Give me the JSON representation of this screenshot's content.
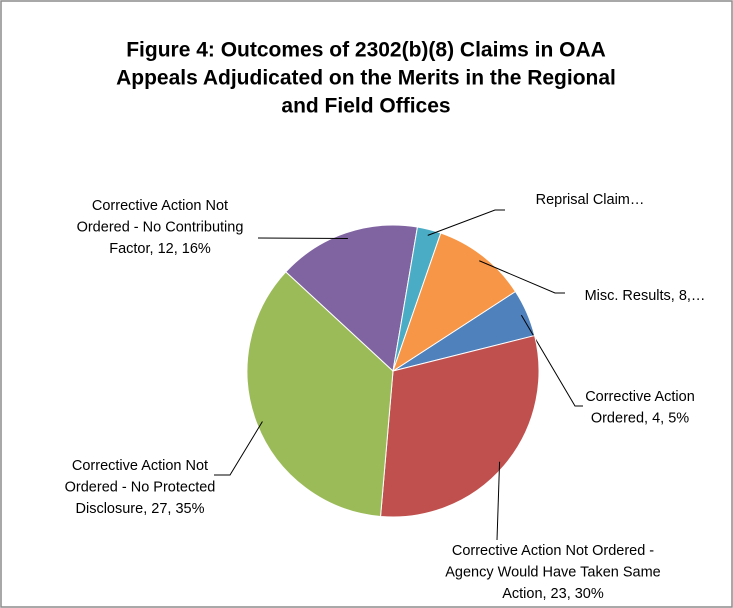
{
  "chart_data": {
    "type": "pie",
    "title": [
      "Figure 4: Outcomes of 2302(b)(8) Claims in OAA",
      "Appeals Adjudicated on the Merits in the Regional",
      "and Field Offices"
    ],
    "values": [
      4,
      23,
      27,
      12,
      2,
      8
    ],
    "value_labels": [
      [
        "Corrective Action",
        "Ordered, 4, 5%"
      ],
      [
        "Corrective Action Not Ordered -",
        "Agency Would Have Taken Same",
        "Action, 23, 30%"
      ],
      [
        "Corrective Action Not",
        "Ordered - No Protected",
        "Disclosure, 27, 35%"
      ],
      [
        "Corrective Action Not",
        "Ordered - No Contributing",
        "Factor, 12, 16%"
      ],
      [
        "Reprisal Claim…"
      ],
      [
        "Misc. Results, 8,…"
      ]
    ],
    "colors": [
      "#4f81bd",
      "#c0504d",
      "#9bbb59",
      "#8064a2",
      "#4bacc6",
      "#f79646"
    ],
    "start_angle": 57
  }
}
